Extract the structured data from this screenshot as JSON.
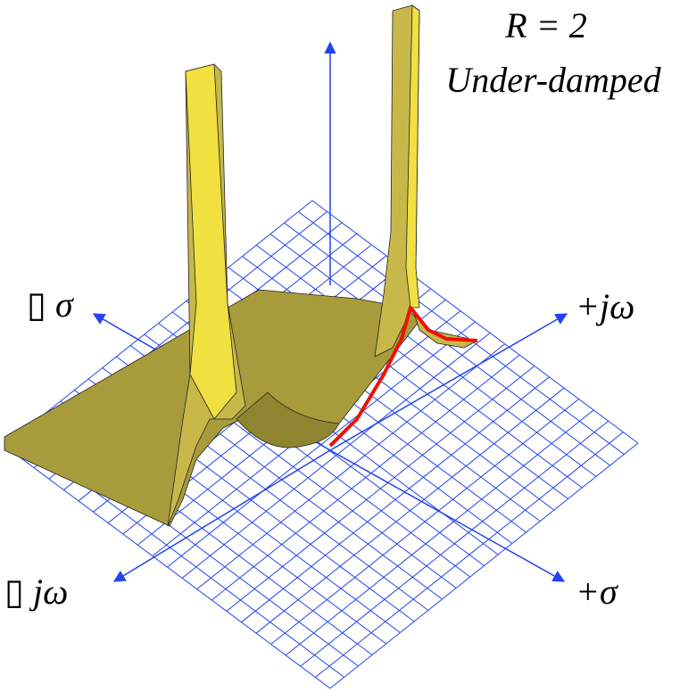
{
  "title": "R = 2",
  "subtitle": "Under-damped",
  "axes": {
    "neg_sigma": "▯ σ",
    "pos_jomega": "+jω",
    "neg_jomega": "▯ jω",
    "pos_sigma": "+σ"
  }
}
